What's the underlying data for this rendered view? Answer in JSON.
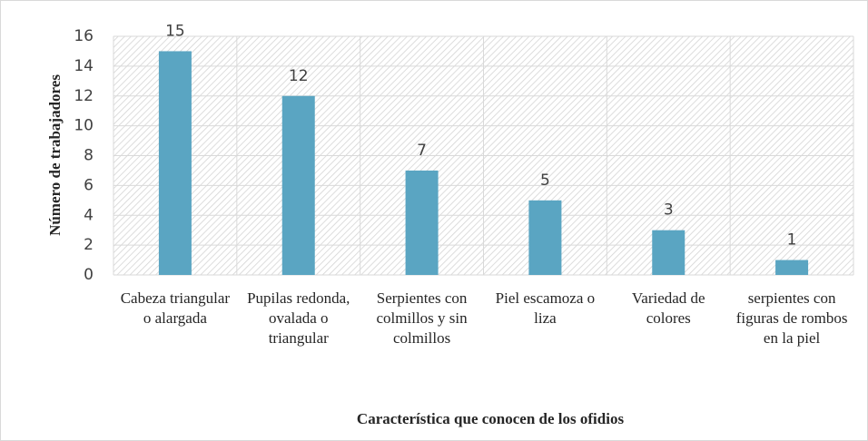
{
  "chart_data": {
    "type": "bar",
    "categories": [
      "Cabeza triangular o alargada",
      "Pupilas redonda, ovalada o triangular",
      "Serpientes con colmillos y sin colmillos",
      "Piel escamoza o liza",
      "Variedad de colores",
      "serpientes con figuras de rombos en la piel"
    ],
    "values": [
      15,
      12,
      7,
      5,
      3,
      1
    ],
    "color": "#5aa5c2",
    "ylim": [
      0,
      16
    ],
    "yticks": [
      0,
      2,
      4,
      6,
      8,
      10,
      12,
      14,
      16
    ],
    "y_label": "Número de trabajadores",
    "x_label": "Característica que conocen de los ofidios",
    "grid": true
  }
}
